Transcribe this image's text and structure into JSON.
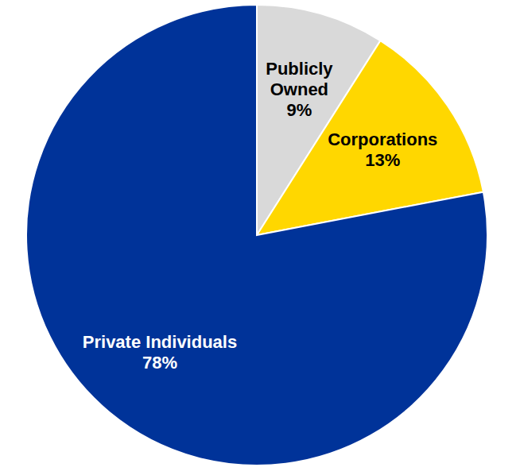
{
  "chart_data": {
    "type": "pie",
    "categories": [
      "Publicly Owned",
      "Corporations",
      "Private Individuals"
    ],
    "values": [
      9,
      13,
      78
    ],
    "value_labels": [
      "9%",
      "13%",
      "78%"
    ],
    "colors": [
      "#d9d9d9",
      "#ffd700",
      "#003399"
    ],
    "data_labels": true
  }
}
